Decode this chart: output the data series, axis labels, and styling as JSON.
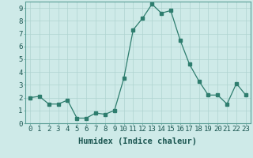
{
  "x": [
    0,
    1,
    2,
    3,
    4,
    5,
    6,
    7,
    8,
    9,
    10,
    11,
    12,
    13,
    14,
    15,
    16,
    17,
    18,
    19,
    20,
    21,
    22,
    23
  ],
  "y": [
    2.0,
    2.1,
    1.5,
    1.5,
    1.8,
    0.4,
    0.4,
    0.8,
    0.7,
    1.0,
    3.5,
    7.3,
    8.2,
    9.3,
    8.6,
    8.8,
    6.5,
    4.6,
    3.3,
    2.2,
    2.2,
    1.5,
    3.1,
    2.2
  ],
  "xlabel": "Humidex (Indice chaleur)",
  "ylim": [
    0,
    9.5
  ],
  "xlim": [
    -0.5,
    23.5
  ],
  "line_color": "#2e7d6e",
  "marker_color": "#2e7d6e",
  "bg_color": "#ceeae8",
  "grid_color": "#afd4d0",
  "tick_label_fontsize": 6.5,
  "xlabel_fontsize": 7.5,
  "yticks": [
    0,
    1,
    2,
    3,
    4,
    5,
    6,
    7,
    8,
    9
  ],
  "xticks": [
    0,
    1,
    2,
    3,
    4,
    5,
    6,
    7,
    8,
    9,
    10,
    11,
    12,
    13,
    14,
    15,
    16,
    17,
    18,
    19,
    20,
    21,
    22,
    23
  ]
}
